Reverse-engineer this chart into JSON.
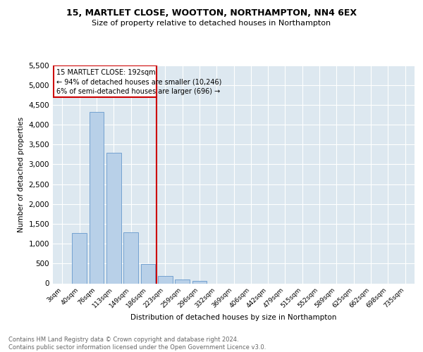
{
  "title1": "15, MARTLET CLOSE, WOOTTON, NORTHAMPTON, NN4 6EX",
  "title2": "Size of property relative to detached houses in Northampton",
  "xlabel": "Distribution of detached houses by size in Northampton",
  "ylabel": "Number of detached properties",
  "footnote": "Contains HM Land Registry data © Crown copyright and database right 2024.\nContains public sector information licensed under the Open Government Licence v3.0.",
  "bar_categories": [
    "3sqm",
    "40sqm",
    "76sqm",
    "113sqm",
    "149sqm",
    "186sqm",
    "223sqm",
    "259sqm",
    "296sqm",
    "332sqm",
    "369sqm",
    "406sqm",
    "442sqm",
    "479sqm",
    "515sqm",
    "552sqm",
    "589sqm",
    "625sqm",
    "662sqm",
    "698sqm",
    "735sqm"
  ],
  "bar_values": [
    0,
    1260,
    4320,
    3290,
    1280,
    490,
    195,
    100,
    55,
    0,
    0,
    0,
    0,
    0,
    0,
    0,
    0,
    0,
    0,
    0,
    0
  ],
  "bar_color": "#b8d0e8",
  "bar_edge_color": "#6699cc",
  "vline_color": "#cc0000",
  "annotation_title": "15 MARTLET CLOSE: 192sqm",
  "annotation_line1": "← 94% of detached houses are smaller (10,246)",
  "annotation_line2": "6% of semi-detached houses are larger (696) →",
  "annotation_box_color": "#cc0000",
  "ylim": [
    0,
    5500
  ],
  "yticks": [
    0,
    500,
    1000,
    1500,
    2000,
    2500,
    3000,
    3500,
    4000,
    4500,
    5000,
    5500
  ],
  "plot_bg_color": "#dde8f0"
}
